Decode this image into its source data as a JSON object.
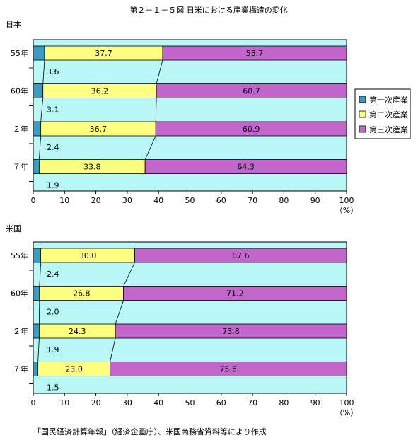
{
  "title": "第２－１－５図 日米における産業構造の変化",
  "unit_label": "（%）",
  "source": "「国民経済計算年報」（経済企画庁）、米国商務省資料等により作成",
  "legend": [
    "第一次産業",
    "第二次産業",
    "第三次産業"
  ],
  "colors": {
    "plot_bg": "#b9f6f6",
    "primary": "#3a9cc0",
    "secondary": "#ffff80",
    "tertiary": "#c266cc",
    "border": "#000000"
  },
  "chart_data": [
    {
      "type": "bar",
      "stacked": true,
      "orientation": "horizontal",
      "title": "日本",
      "categories": [
        "55年",
        "60年",
        "２年",
        "７年"
      ],
      "series": [
        {
          "name": "第一次産業",
          "values": [
            3.6,
            3.1,
            2.4,
            1.9
          ]
        },
        {
          "name": "第二次産業",
          "values": [
            37.7,
            36.2,
            36.7,
            33.8
          ]
        },
        {
          "name": "第三次産業",
          "values": [
            58.7,
            60.7,
            60.9,
            64.3
          ]
        }
      ],
      "xlim": [
        0,
        100
      ],
      "xticks": [
        "0",
        "10",
        "20",
        "30",
        "40",
        "50",
        "60",
        "70",
        "80",
        "90",
        "100"
      ],
      "legend_position": "right"
    },
    {
      "type": "bar",
      "stacked": true,
      "orientation": "horizontal",
      "title": "米国",
      "categories": [
        "55年",
        "60年",
        "２年",
        "７年"
      ],
      "series": [
        {
          "name": "第一次産業",
          "values": [
            2.4,
            2.0,
            1.9,
            1.5
          ]
        },
        {
          "name": "第二次産業",
          "values": [
            30.0,
            26.8,
            24.3,
            23.0
          ]
        },
        {
          "name": "第三次産業",
          "values": [
            67.6,
            71.2,
            73.8,
            75.5
          ]
        }
      ],
      "xlim": [
        0,
        100
      ],
      "xticks": [
        "0",
        "10",
        "20",
        "30",
        "40",
        "50",
        "60",
        "70",
        "80",
        "90",
        "100"
      ]
    }
  ]
}
